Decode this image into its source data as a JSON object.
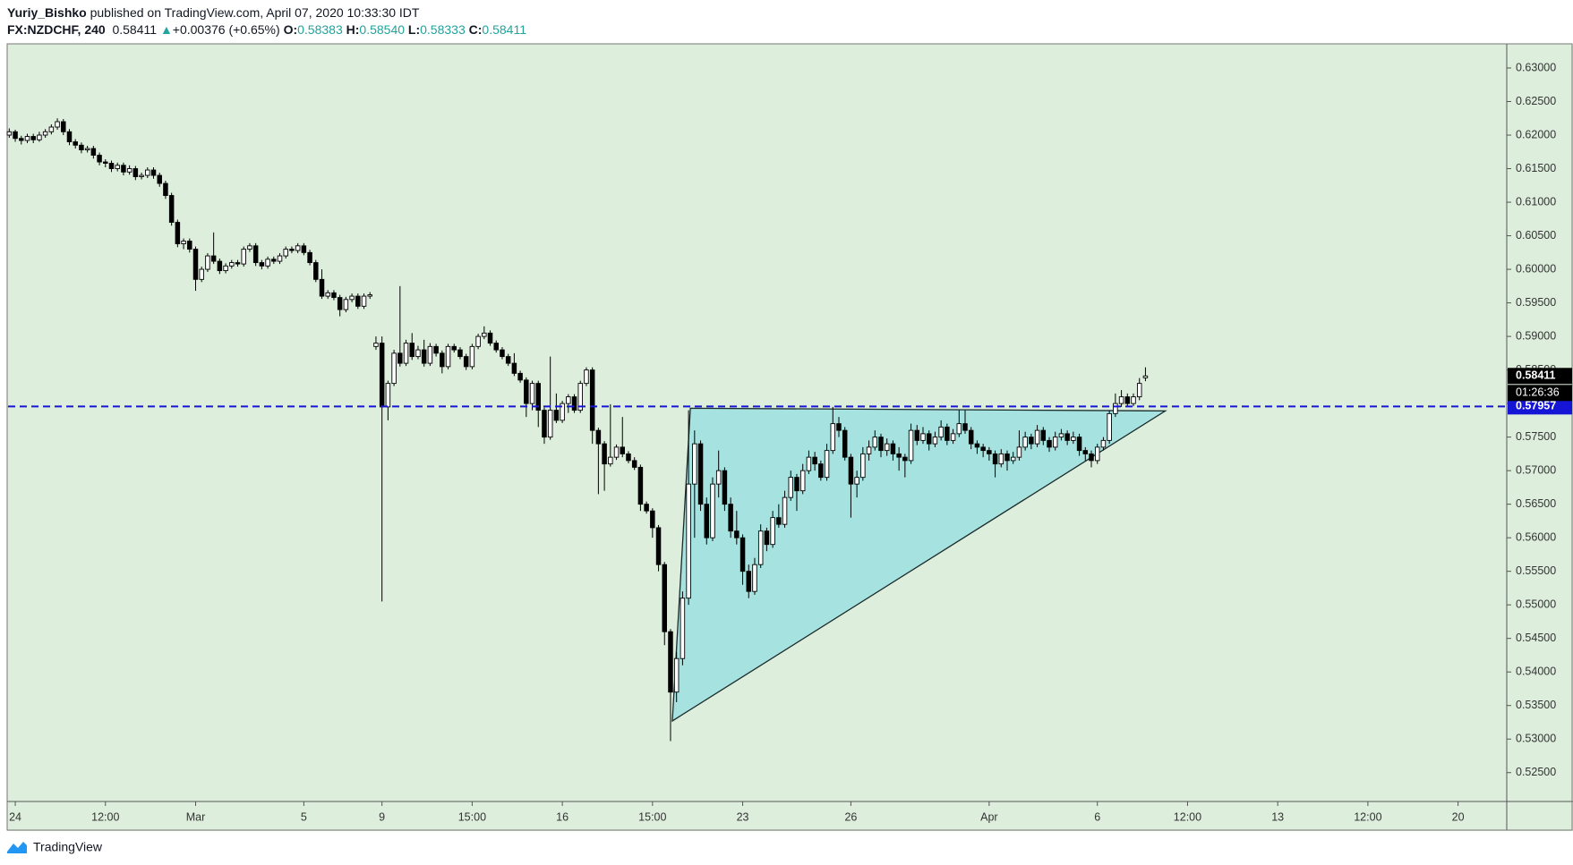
{
  "header": {
    "author": "Yuriy_Bishko",
    "published": "published on TradingView.com, April 07, 2020 10:33:30 IDT",
    "symbol": "FX:NZDCHF, 240",
    "last": "0.58411",
    "arrow": "▲",
    "change": "+0.00376 (+0.65%)",
    "o_label": "O:",
    "o": "0.58383",
    "h_label": "H:",
    "h": "0.58540",
    "l_label": "L:",
    "l": "0.58333",
    "c_label": "C:",
    "c": "0.58411"
  },
  "footer": {
    "brand": "TradingView"
  },
  "chart_data": {
    "type": "candlestick",
    "up_color": "#ffffff",
    "down_color": "#000000",
    "background": "#ddeedc",
    "ylim": [
      0.5207,
      0.6336
    ],
    "xlim": [
      -0.2,
      249.1
    ],
    "yticks": [
      {
        "value": 0.525,
        "label": "0.52500"
      },
      {
        "value": 0.53,
        "label": "0.53000"
      },
      {
        "value": 0.535,
        "label": "0.53500"
      },
      {
        "value": 0.54,
        "label": "0.54000"
      },
      {
        "value": 0.545,
        "label": "0.54500"
      },
      {
        "value": 0.55,
        "label": "0.55000"
      },
      {
        "value": 0.555,
        "label": "0.55500"
      },
      {
        "value": 0.56,
        "label": "0.56000"
      },
      {
        "value": 0.565,
        "label": "0.56500"
      },
      {
        "value": 0.57,
        "label": "0.57000"
      },
      {
        "value": 0.575,
        "label": "0.57500"
      },
      {
        "value": 0.58,
        "label": "0.58000"
      },
      {
        "value": 0.585,
        "label": "0.58500"
      },
      {
        "value": 0.59,
        "label": "0.59000"
      },
      {
        "value": 0.595,
        "label": "0.59500"
      },
      {
        "value": 0.6,
        "label": "0.60000"
      },
      {
        "value": 0.605,
        "label": "0.60500"
      },
      {
        "value": 0.61,
        "label": "0.61000"
      },
      {
        "value": 0.615,
        "label": "0.61500"
      },
      {
        "value": 0.62,
        "label": "0.62000"
      },
      {
        "value": 0.625,
        "label": "0.62500"
      },
      {
        "value": 0.63,
        "label": "0.63000"
      }
    ],
    "xticks": [
      {
        "value": 1,
        "label": "24"
      },
      {
        "value": 16,
        "label": "12:00"
      },
      {
        "value": 31,
        "label": "Mar"
      },
      {
        "value": 49,
        "label": "5"
      },
      {
        "value": 62,
        "label": "9"
      },
      {
        "value": 77,
        "label": "15:00"
      },
      {
        "value": 92,
        "label": "16"
      },
      {
        "value": 107,
        "label": "15:00"
      },
      {
        "value": 122,
        "label": "23"
      },
      {
        "value": 140,
        "label": "26"
      },
      {
        "value": 163,
        "label": "Apr"
      },
      {
        "value": 181,
        "label": "6"
      },
      {
        "value": 196,
        "label": "12:00"
      },
      {
        "value": 211,
        "label": "13"
      },
      {
        "value": 226,
        "label": "12:00"
      },
      {
        "value": 241,
        "label": "20"
      }
    ],
    "hline": {
      "value": 0.57957,
      "label": "0.57957",
      "color": "#1515d6"
    },
    "last_price": {
      "value": 0.58411,
      "label": "0.58411",
      "color": "#000000",
      "countdown": "01:26:36"
    },
    "triangle": {
      "color": "#a6e3e0",
      "points": [
        {
          "x": 113.3,
          "y": 0.5793
        },
        {
          "x": 110.3,
          "y": 0.5327
        },
        {
          "x": 192.3,
          "y": 0.5789
        }
      ]
    },
    "candles": [
      [
        0.62,
        0.621,
        0.6196,
        0.6205
      ],
      [
        0.6205,
        0.6208,
        0.619,
        0.6195
      ],
      [
        0.6195,
        0.6199,
        0.6186,
        0.6192
      ],
      [
        0.6192,
        0.6202,
        0.6188,
        0.6198
      ],
      [
        0.6198,
        0.6202,
        0.6188,
        0.6193
      ],
      [
        0.6193,
        0.6205,
        0.619,
        0.62
      ],
      [
        0.62,
        0.6209,
        0.6196,
        0.6205
      ],
      [
        0.6205,
        0.6216,
        0.6201,
        0.6212
      ],
      [
        0.6212,
        0.6225,
        0.6208,
        0.622
      ],
      [
        0.622,
        0.6224,
        0.62,
        0.6205
      ],
      [
        0.6205,
        0.6209,
        0.6185,
        0.619
      ],
      [
        0.619,
        0.6194,
        0.618,
        0.6185
      ],
      [
        0.6185,
        0.6189,
        0.6173,
        0.6178
      ],
      [
        0.6178,
        0.6184,
        0.6174,
        0.618
      ],
      [
        0.618,
        0.6184,
        0.6165,
        0.617
      ],
      [
        0.617,
        0.6174,
        0.6155,
        0.616
      ],
      [
        0.616,
        0.6164,
        0.6152,
        0.6158
      ],
      [
        0.6158,
        0.6162,
        0.6145,
        0.615
      ],
      [
        0.615,
        0.6159,
        0.6146,
        0.6155
      ],
      [
        0.6155,
        0.6159,
        0.614,
        0.6145
      ],
      [
        0.6145,
        0.6155,
        0.6141,
        0.615
      ],
      [
        0.615,
        0.6154,
        0.6133,
        0.6138
      ],
      [
        0.6138,
        0.6144,
        0.6134,
        0.614
      ],
      [
        0.614,
        0.6152,
        0.6136,
        0.6148
      ],
      [
        0.6148,
        0.6152,
        0.6135,
        0.614
      ],
      [
        0.614,
        0.6144,
        0.6123,
        0.6128
      ],
      [
        0.6128,
        0.6132,
        0.6105,
        0.611
      ],
      [
        0.611,
        0.6114,
        0.6065,
        0.607
      ],
      [
        0.607,
        0.6074,
        0.6033,
        0.6038
      ],
      [
        0.6038,
        0.6046,
        0.603,
        0.6042
      ],
      [
        0.6042,
        0.6046,
        0.6025,
        0.603
      ],
      [
        0.603,
        0.6034,
        0.5968,
        0.5985
      ],
      [
        0.5985,
        0.6004,
        0.5981,
        0.6
      ],
      [
        0.6,
        0.6024,
        0.5996,
        0.602
      ],
      [
        0.602,
        0.6055,
        0.6008,
        0.6012
      ],
      [
        0.6012,
        0.6016,
        0.5993,
        0.5998
      ],
      [
        0.5998,
        0.6009,
        0.5994,
        0.6005
      ],
      [
        0.6005,
        0.6014,
        0.6001,
        0.601
      ],
      [
        0.601,
        0.6014,
        0.6004,
        0.6008
      ],
      [
        0.6008,
        0.6034,
        0.6004,
        0.603
      ],
      [
        0.603,
        0.6039,
        0.6026,
        0.6035
      ],
      [
        0.6035,
        0.6039,
        0.6005,
        0.601
      ],
      [
        0.601,
        0.6014,
        0.6,
        0.6005
      ],
      [
        0.6005,
        0.6019,
        0.6001,
        0.6015
      ],
      [
        0.6015,
        0.6019,
        0.6008,
        0.6012
      ],
      [
        0.6012,
        0.6024,
        0.6008,
        0.602
      ],
      [
        0.602,
        0.6034,
        0.6016,
        0.603
      ],
      [
        0.603,
        0.6034,
        0.6024,
        0.6028
      ],
      [
        0.6028,
        0.6039,
        0.6024,
        0.6035
      ],
      [
        0.6035,
        0.6039,
        0.6021,
        0.6025
      ],
      [
        0.6025,
        0.6029,
        0.6006,
        0.601
      ],
      [
        0.601,
        0.6014,
        0.5981,
        0.5985
      ],
      [
        0.5985,
        0.6,
        0.5956,
        0.596
      ],
      [
        0.596,
        0.5969,
        0.5956,
        0.5965
      ],
      [
        0.5965,
        0.5969,
        0.5954,
        0.5958
      ],
      [
        0.5958,
        0.5962,
        0.593,
        0.594
      ],
      [
        0.594,
        0.5959,
        0.5936,
        0.5955
      ],
      [
        0.5955,
        0.5964,
        0.5951,
        0.596
      ],
      [
        0.596,
        0.5964,
        0.5941,
        0.5945
      ],
      [
        0.5945,
        0.5964,
        0.5941,
        0.596
      ],
      [
        0.596,
        0.5966,
        0.5956,
        0.5962
      ],
      [
        0.5885,
        0.59,
        0.588,
        0.589
      ],
      [
        0.589,
        0.59,
        0.5505,
        0.5795
      ],
      [
        0.5795,
        0.5834,
        0.5775,
        0.583
      ],
      [
        0.583,
        0.588,
        0.5826,
        0.5875
      ],
      [
        0.5875,
        0.5975,
        0.5855,
        0.586
      ],
      [
        0.586,
        0.5895,
        0.5856,
        0.589
      ],
      [
        0.589,
        0.5905,
        0.5865,
        0.587
      ],
      [
        0.587,
        0.5886,
        0.5866,
        0.588
      ],
      [
        0.588,
        0.5895,
        0.5855,
        0.586
      ],
      [
        0.586,
        0.589,
        0.5856,
        0.5885
      ],
      [
        0.5885,
        0.5889,
        0.587,
        0.5875
      ],
      [
        0.5875,
        0.5879,
        0.5845,
        0.5855
      ],
      [
        0.5855,
        0.5889,
        0.5851,
        0.5885
      ],
      [
        0.5885,
        0.5889,
        0.5876,
        0.588
      ],
      [
        0.588,
        0.5884,
        0.5866,
        0.587
      ],
      [
        0.587,
        0.5874,
        0.585,
        0.5855
      ],
      [
        0.5855,
        0.5889,
        0.5851,
        0.5885
      ],
      [
        0.5885,
        0.5904,
        0.5881,
        0.59
      ],
      [
        0.59,
        0.5915,
        0.5896,
        0.5905
      ],
      [
        0.5905,
        0.5909,
        0.5886,
        0.589
      ],
      [
        0.589,
        0.5894,
        0.5876,
        0.588
      ],
      [
        0.588,
        0.5884,
        0.5866,
        0.587
      ],
      [
        0.587,
        0.5874,
        0.5856,
        0.586
      ],
      [
        0.586,
        0.5875,
        0.5841,
        0.5845
      ],
      [
        0.5845,
        0.5849,
        0.5831,
        0.5835
      ],
      [
        0.5835,
        0.5839,
        0.578,
        0.58
      ],
      [
        0.58,
        0.5834,
        0.579,
        0.583
      ],
      [
        0.583,
        0.5834,
        0.5765,
        0.579
      ],
      [
        0.579,
        0.5794,
        0.574,
        0.575
      ],
      [
        0.575,
        0.587,
        0.5746,
        0.579
      ],
      [
        0.579,
        0.5815,
        0.5771,
        0.5775
      ],
      [
        0.5775,
        0.5804,
        0.5771,
        0.58
      ],
      [
        0.58,
        0.5814,
        0.5786,
        0.581
      ],
      [
        0.581,
        0.5814,
        0.5786,
        0.579
      ],
      [
        0.579,
        0.5834,
        0.5786,
        0.583
      ],
      [
        0.583,
        0.5854,
        0.5826,
        0.585
      ],
      [
        0.585,
        0.5854,
        0.574,
        0.576
      ],
      [
        0.576,
        0.5764,
        0.5665,
        0.574
      ],
      [
        0.574,
        0.5744,
        0.567,
        0.571
      ],
      [
        0.571,
        0.5799,
        0.5706,
        0.572
      ],
      [
        0.572,
        0.5739,
        0.5716,
        0.5735
      ],
      [
        0.5735,
        0.578,
        0.572,
        0.5725
      ],
      [
        0.5725,
        0.5729,
        0.5711,
        0.5715
      ],
      [
        0.5715,
        0.572,
        0.5701,
        0.5705
      ],
      [
        0.5705,
        0.5709,
        0.564,
        0.565
      ],
      [
        0.565,
        0.5654,
        0.5636,
        0.564
      ],
      [
        0.564,
        0.5644,
        0.56,
        0.5615
      ],
      [
        0.5615,
        0.5619,
        0.555,
        0.556
      ],
      [
        0.556,
        0.5564,
        0.544,
        0.546
      ],
      [
        0.546,
        0.5464,
        0.5297,
        0.537
      ],
      [
        0.537,
        0.543,
        0.5355,
        0.542
      ],
      [
        0.542,
        0.552,
        0.541,
        0.551
      ],
      [
        0.551,
        0.579,
        0.55,
        0.568
      ],
      [
        0.568,
        0.576,
        0.56,
        0.574
      ],
      [
        0.574,
        0.5745,
        0.564,
        0.565
      ],
      [
        0.565,
        0.566,
        0.559,
        0.56
      ],
      [
        0.56,
        0.569,
        0.5595,
        0.568
      ],
      [
        0.568,
        0.573,
        0.566,
        0.57
      ],
      [
        0.57,
        0.5705,
        0.564,
        0.565
      ],
      [
        0.565,
        0.566,
        0.56,
        0.561
      ],
      [
        0.561,
        0.564,
        0.559,
        0.56
      ],
      [
        0.56,
        0.5605,
        0.553,
        0.555
      ],
      [
        0.555,
        0.556,
        0.551,
        0.552
      ],
      [
        0.552,
        0.557,
        0.5515,
        0.556
      ],
      [
        0.556,
        0.562,
        0.5555,
        0.561
      ],
      [
        0.561,
        0.5615,
        0.558,
        0.559
      ],
      [
        0.559,
        0.564,
        0.5585,
        0.563
      ],
      [
        0.563,
        0.565,
        0.5615,
        0.562
      ],
      [
        0.562,
        0.567,
        0.5615,
        0.566
      ],
      [
        0.566,
        0.57,
        0.5655,
        0.569
      ],
      [
        0.569,
        0.5695,
        0.564,
        0.567
      ],
      [
        0.567,
        0.571,
        0.5665,
        0.57
      ],
      [
        0.57,
        0.573,
        0.5695,
        0.572
      ],
      [
        0.572,
        0.5728,
        0.57,
        0.571
      ],
      [
        0.571,
        0.5715,
        0.5685,
        0.569
      ],
      [
        0.569,
        0.574,
        0.5685,
        0.573
      ],
      [
        0.573,
        0.5795,
        0.5725,
        0.577
      ],
      [
        0.577,
        0.578,
        0.575,
        0.576
      ],
      [
        0.576,
        0.5765,
        0.5715,
        0.572
      ],
      [
        0.572,
        0.5725,
        0.563,
        0.568
      ],
      [
        0.568,
        0.57,
        0.566,
        0.569
      ],
      [
        0.569,
        0.5735,
        0.5685,
        0.5725
      ],
      [
        0.5725,
        0.5745,
        0.5715,
        0.5735
      ],
      [
        0.5735,
        0.576,
        0.573,
        0.575
      ],
      [
        0.575,
        0.5755,
        0.572,
        0.573
      ],
      [
        0.573,
        0.5748,
        0.5722,
        0.574
      ],
      [
        0.574,
        0.5745,
        0.5715,
        0.5725
      ],
      [
        0.5725,
        0.5735,
        0.57,
        0.572
      ],
      [
        0.572,
        0.5725,
        0.569,
        0.5715
      ],
      [
        0.5715,
        0.577,
        0.571,
        0.576
      ],
      [
        0.576,
        0.5768,
        0.5738,
        0.5745
      ],
      [
        0.5745,
        0.5765,
        0.574,
        0.5755
      ],
      [
        0.5755,
        0.576,
        0.573,
        0.574
      ],
      [
        0.574,
        0.5758,
        0.5735,
        0.575
      ],
      [
        0.575,
        0.5775,
        0.5745,
        0.5765
      ],
      [
        0.5765,
        0.577,
        0.5738,
        0.5745
      ],
      [
        0.5745,
        0.5762,
        0.574,
        0.5755
      ],
      [
        0.5755,
        0.579,
        0.575,
        0.577
      ],
      [
        0.577,
        0.579,
        0.5755,
        0.576
      ],
      [
        0.576,
        0.5765,
        0.5732,
        0.574
      ],
      [
        0.574,
        0.5745,
        0.5725,
        0.5735
      ],
      [
        0.5735,
        0.574,
        0.572,
        0.573
      ],
      [
        0.573,
        0.5735,
        0.5715,
        0.5725
      ],
      [
        0.5725,
        0.573,
        0.569,
        0.571
      ],
      [
        0.571,
        0.5732,
        0.5705,
        0.5725
      ],
      [
        0.5725,
        0.573,
        0.57,
        0.5715
      ],
      [
        0.5715,
        0.5728,
        0.571,
        0.572
      ],
      [
        0.572,
        0.576,
        0.5715,
        0.5735
      ],
      [
        0.5735,
        0.5758,
        0.573,
        0.575
      ],
      [
        0.575,
        0.5755,
        0.5732,
        0.574
      ],
      [
        0.574,
        0.5768,
        0.5735,
        0.576
      ],
      [
        0.576,
        0.5765,
        0.5738,
        0.5745
      ],
      [
        0.5745,
        0.575,
        0.5728,
        0.5735
      ],
      [
        0.5735,
        0.5758,
        0.573,
        0.575
      ],
      [
        0.575,
        0.5762,
        0.5745,
        0.5755
      ],
      [
        0.5755,
        0.576,
        0.5738,
        0.5745
      ],
      [
        0.5745,
        0.5758,
        0.574,
        0.575
      ],
      [
        0.575,
        0.5755,
        0.5722,
        0.573
      ],
      [
        0.573,
        0.5735,
        0.5715,
        0.5725
      ],
      [
        0.5725,
        0.573,
        0.5705,
        0.5715
      ],
      [
        0.5715,
        0.574,
        0.571,
        0.5735
      ],
      [
        0.5735,
        0.575,
        0.573,
        0.5745
      ],
      [
        0.5745,
        0.579,
        0.574,
        0.5785
      ],
      [
        0.5785,
        0.5815,
        0.578,
        0.58
      ],
      [
        0.58,
        0.582,
        0.5795,
        0.581
      ],
      [
        0.581,
        0.5815,
        0.5795,
        0.58
      ],
      [
        0.58,
        0.5815,
        0.5796,
        0.581
      ],
      [
        0.581,
        0.5838,
        0.5805,
        0.583
      ],
      [
        0.58383,
        0.5854,
        0.58333,
        0.58411
      ]
    ]
  }
}
